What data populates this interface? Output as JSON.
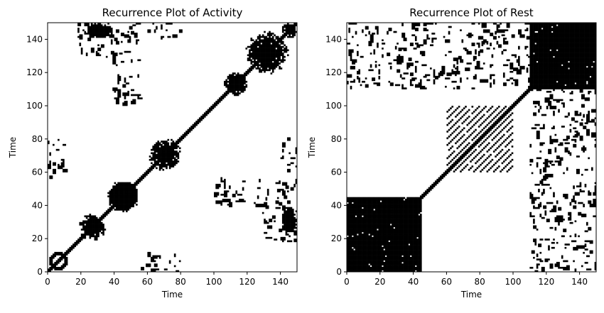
{
  "chart_data": [
    {
      "type": "heatmap",
      "title": "Recurrence Plot of Activity",
      "xlabel": "Time",
      "ylabel": "Time",
      "xlim": [
        0,
        150
      ],
      "ylim": [
        0,
        150
      ],
      "xticks": [
        0,
        20,
        40,
        60,
        80,
        100,
        120,
        140
      ],
      "yticks": [
        0,
        20,
        40,
        60,
        80,
        100,
        120,
        140
      ],
      "colors": {
        "recurrent": "#000000",
        "non_recurrent": "#ffffff"
      },
      "regions": [
        {
          "x": [
            0,
            150
          ],
          "y": [
            0,
            150
          ],
          "type": "diagonal"
        },
        {
          "x": [
            0,
            12
          ],
          "y": [
            0,
            12
          ],
          "type": "ring"
        },
        {
          "x": [
            18,
            35
          ],
          "y": [
            18,
            35
          ],
          "type": "blob"
        },
        {
          "x": [
            35,
            55
          ],
          "y": [
            35,
            55
          ],
          "type": "blob"
        },
        {
          "x": [
            35,
            55
          ],
          "y": [
            35,
            55
          ],
          "type": "ring"
        },
        {
          "x": [
            60,
            80
          ],
          "y": [
            60,
            80
          ],
          "type": "blob"
        },
        {
          "x": [
            105,
            120
          ],
          "y": [
            105,
            120
          ],
          "type": "blob"
        },
        {
          "x": [
            118,
            145
          ],
          "y": [
            118,
            145
          ],
          "type": "blob"
        },
        {
          "x": [
            140,
            150
          ],
          "y": [
            140,
            150
          ],
          "type": "blob"
        },
        {
          "x": [
            18,
            35
          ],
          "y": [
            130,
            150
          ],
          "type": "scatter"
        },
        {
          "x": [
            130,
            150
          ],
          "y": [
            18,
            35
          ],
          "type": "scatter"
        },
        {
          "x": [
            100,
            150
          ],
          "y": [
            35,
            55
          ],
          "type": "scatter"
        },
        {
          "x": [
            35,
            55
          ],
          "y": [
            100,
            150
          ],
          "type": "scatter"
        },
        {
          "x": [
            0,
            10
          ],
          "y": [
            55,
            80
          ],
          "type": "scatter"
        },
        {
          "x": [
            55,
            80
          ],
          "y": [
            0,
            10
          ],
          "type": "scatter"
        },
        {
          "x": [
            140,
            150
          ],
          "y": [
            60,
            80
          ],
          "type": "scatter"
        },
        {
          "x": [
            60,
            80
          ],
          "y": [
            140,
            150
          ],
          "type": "scatter"
        },
        {
          "x": [
            140,
            150
          ],
          "y": [
            20,
            40
          ],
          "type": "blob"
        },
        {
          "x": [
            20,
            40
          ],
          "y": [
            140,
            150
          ],
          "type": "blob"
        }
      ]
    },
    {
      "type": "heatmap",
      "title": "Recurrence Plot of Rest",
      "xlabel": "Time",
      "ylabel": "Time",
      "xlim": [
        0,
        150
      ],
      "ylim": [
        0,
        150
      ],
      "xticks": [
        0,
        20,
        40,
        60,
        80,
        100,
        120,
        140
      ],
      "yticks": [
        0,
        20,
        40,
        60,
        80,
        100,
        120,
        140
      ],
      "colors": {
        "recurrent": "#000000",
        "non_recurrent": "#ffffff"
      },
      "regions": [
        {
          "x": [
            0,
            150
          ],
          "y": [
            0,
            150
          ],
          "type": "diagonal"
        },
        {
          "x": [
            0,
            45
          ],
          "y": [
            0,
            45
          ],
          "type": "block"
        },
        {
          "x": [
            110,
            150
          ],
          "y": [
            110,
            150
          ],
          "type": "block"
        },
        {
          "x": [
            60,
            100
          ],
          "y": [
            60,
            100
          ],
          "type": "stripes"
        },
        {
          "x": [
            0,
            45
          ],
          "y": [
            110,
            150
          ],
          "type": "scatter"
        },
        {
          "x": [
            110,
            150
          ],
          "y": [
            0,
            45
          ],
          "type": "scatter"
        },
        {
          "x": [
            45,
            110
          ],
          "y": [
            110,
            150
          ],
          "type": "scatter"
        },
        {
          "x": [
            110,
            150
          ],
          "y": [
            45,
            110
          ],
          "type": "scatter"
        }
      ]
    }
  ]
}
